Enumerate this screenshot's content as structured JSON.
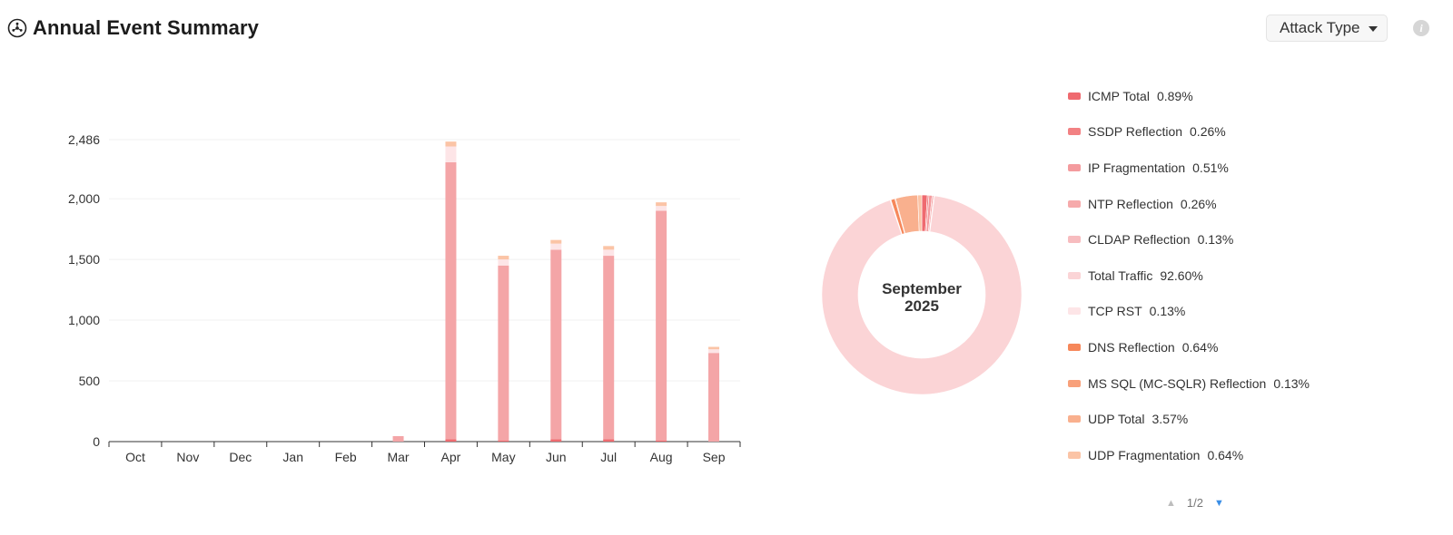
{
  "header": {
    "title": "Annual Event Summary",
    "icon": "globe-network-icon"
  },
  "controls": {
    "dropdown_label": "Attack Type",
    "info_icon": "info-icon"
  },
  "pager": {
    "text": "1/2"
  },
  "colors": {
    "ICMP Total": "#ef6a6f",
    "SSDP Reflection": "#f28183",
    "IP Fragmentation": "#f49b9e",
    "NTP Reflection": "#f6aaab",
    "CLDAP Reflection": "#f7bcbf",
    "Total Traffic": "#fbd4d6",
    "TCP RST": "#fde5e7",
    "DNS Reflection": "#f6875a",
    "MS SQL (MC-SQLR) Reflection": "#f8a07a",
    "UDP Total": "#f9b08e",
    "UDP Fragmentation": "#fbc4a6",
    "bar_main": "#f4a5a7"
  },
  "chart_data": [
    {
      "type": "bar",
      "stacked": true,
      "categories": [
        "Oct",
        "Nov",
        "Dec",
        "Jan",
        "Feb",
        "Mar",
        "Apr",
        "May",
        "Jun",
        "Jul",
        "Aug",
        "Sep"
      ],
      "ylim": [
        0,
        2486
      ],
      "yticks": [
        0,
        500,
        1000,
        1500,
        2000,
        2486
      ],
      "ytick_labels": [
        "0",
        "500",
        "1,000",
        "1,500",
        "2,000",
        "2,486"
      ],
      "grid": true,
      "series": [
        {
          "name": "ICMP Total",
          "values": [
            0,
            0,
            0,
            0,
            0,
            0,
            20,
            10,
            20,
            20,
            10,
            0
          ]
        },
        {
          "name": "Total Traffic",
          "values": [
            0,
            0,
            0,
            0,
            0,
            45,
            2280,
            1440,
            1560,
            1510,
            1890,
            730
          ]
        },
        {
          "name": "TCP RST",
          "values": [
            0,
            0,
            0,
            0,
            0,
            0,
            130,
            50,
            50,
            50,
            40,
            30
          ]
        },
        {
          "name": "UDP Fragmentation",
          "values": [
            0,
            0,
            0,
            0,
            0,
            0,
            40,
            30,
            30,
            30,
            30,
            20
          ]
        }
      ]
    },
    {
      "type": "pie",
      "donut": true,
      "center_label": [
        "September",
        "2025"
      ],
      "slices": [
        {
          "name": "ICMP Total",
          "value": 0.89
        },
        {
          "name": "SSDP Reflection",
          "value": 0.26
        },
        {
          "name": "IP Fragmentation",
          "value": 0.51
        },
        {
          "name": "NTP Reflection",
          "value": 0.26
        },
        {
          "name": "CLDAP Reflection",
          "value": 0.13
        },
        {
          "name": "Total Traffic",
          "value": 92.6
        },
        {
          "name": "TCP RST",
          "value": 0.13
        },
        {
          "name": "DNS Reflection",
          "value": 0.64
        },
        {
          "name": "MS SQL (MC-SQLR) Reflection",
          "value": 0.13
        },
        {
          "name": "UDP Total",
          "value": 3.57
        },
        {
          "name": "UDP Fragmentation",
          "value": 0.64
        }
      ],
      "legend": [
        {
          "name": "ICMP Total",
          "value": "0.89%"
        },
        {
          "name": "SSDP Reflection",
          "value": "0.26%"
        },
        {
          "name": "IP Fragmentation",
          "value": "0.51%"
        },
        {
          "name": "NTP Reflection",
          "value": "0.26%"
        },
        {
          "name": "CLDAP Reflection",
          "value": "0.13%"
        },
        {
          "name": "Total Traffic",
          "value": "92.60%"
        },
        {
          "name": "TCP RST",
          "value": "0.13%"
        },
        {
          "name": "DNS Reflection",
          "value": "0.64%"
        },
        {
          "name": "MS SQL (MC-SQLR) Reflection",
          "value": "0.13%"
        },
        {
          "name": "UDP Total",
          "value": "3.57%"
        },
        {
          "name": "UDP Fragmentation",
          "value": "0.64%"
        }
      ]
    }
  ]
}
